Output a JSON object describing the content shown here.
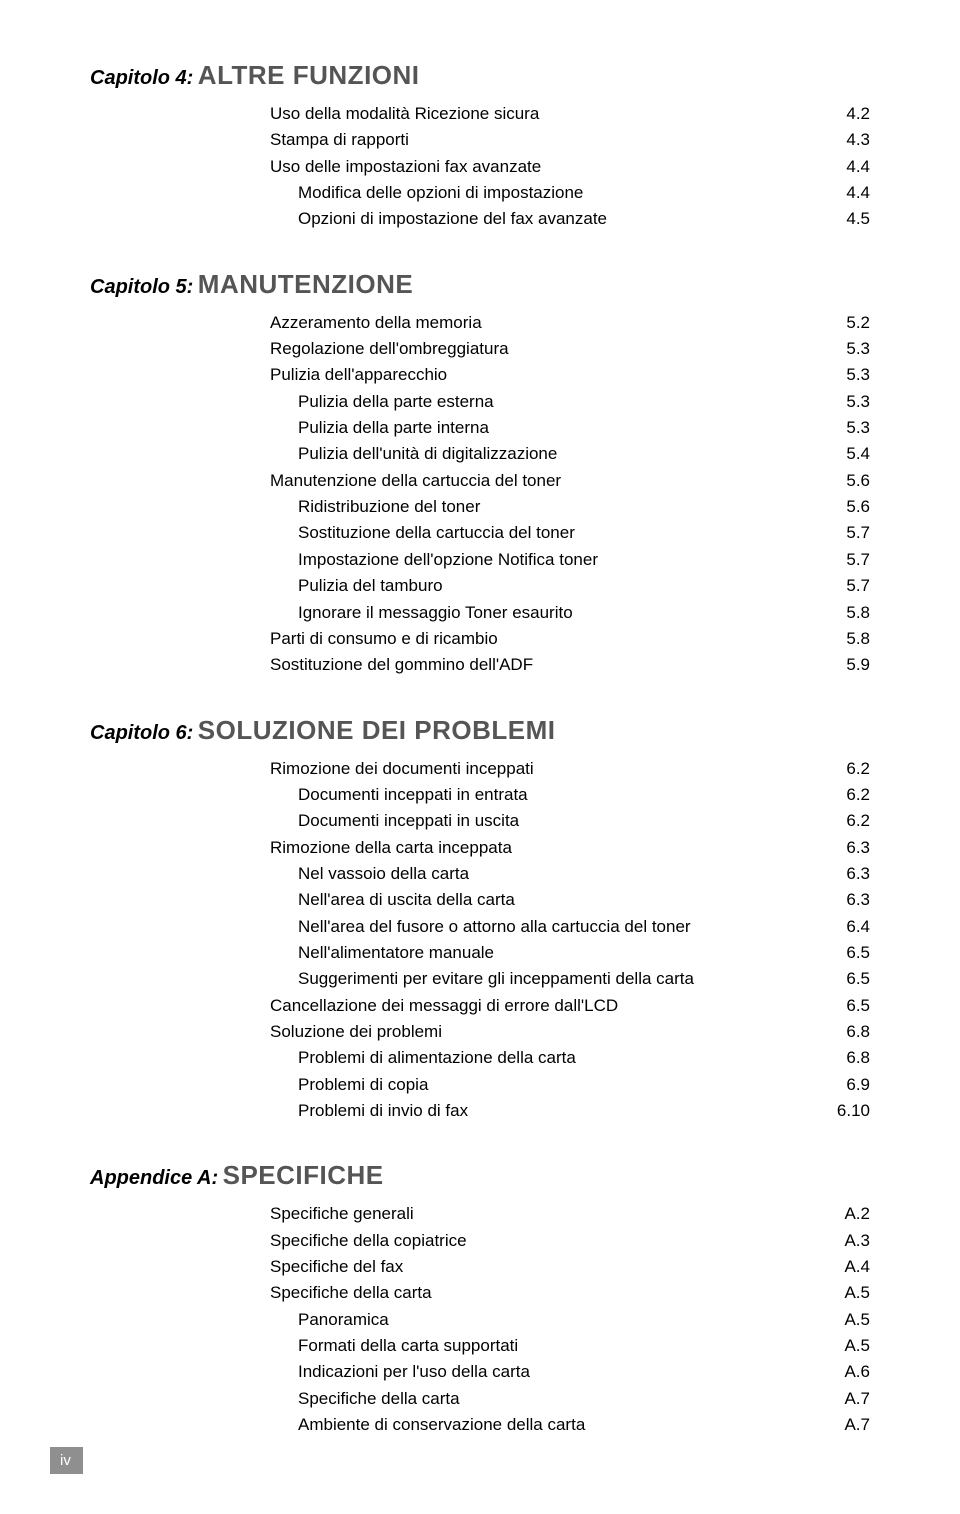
{
  "colors": {
    "chapter_title": "#555555",
    "text": "#000000",
    "badge_bg": "#8f8f8f",
    "badge_text": "#ffffff",
    "page_bg": "#ffffff"
  },
  "typography": {
    "chapter_label_size_pt": 15,
    "chapter_title_size_pt": 20,
    "toc_line_size_pt": 12,
    "font_family": "Verdana"
  },
  "page_number": "iv",
  "chapters": [
    {
      "label": "Capitolo 4:",
      "title": "ALTRE FUNZIONI",
      "toc": [
        {
          "indent": 0,
          "text": "Uso della modalità Ricezione sicura",
          "page": "4.2"
        },
        {
          "indent": 0,
          "text": "Stampa di rapporti",
          "page": "4.3"
        },
        {
          "indent": 0,
          "text": "Uso delle impostazioni fax avanzate",
          "page": "4.4"
        },
        {
          "indent": 1,
          "text": "Modifica delle opzioni di impostazione",
          "page": "4.4"
        },
        {
          "indent": 1,
          "text": "Opzioni di impostazione del fax avanzate",
          "page": "4.5"
        }
      ]
    },
    {
      "label": "Capitolo 5:",
      "title": "MANUTENZIONE",
      "toc": [
        {
          "indent": 0,
          "text": "Azzeramento della memoria",
          "page": "5.2"
        },
        {
          "indent": 0,
          "text": "Regolazione dell'ombreggiatura",
          "page": "5.3"
        },
        {
          "indent": 0,
          "text": "Pulizia dell'apparecchio",
          "page": "5.3"
        },
        {
          "indent": 1,
          "text": "Pulizia della parte esterna",
          "page": "5.3"
        },
        {
          "indent": 1,
          "text": "Pulizia della parte interna",
          "page": "5.3"
        },
        {
          "indent": 1,
          "text": "Pulizia dell'unità di digitalizzazione",
          "page": "5.4"
        },
        {
          "indent": 0,
          "text": "Manutenzione della cartuccia del toner",
          "page": "5.6"
        },
        {
          "indent": 1,
          "text": "Ridistribuzione del toner",
          "page": "5.6"
        },
        {
          "indent": 1,
          "text": "Sostituzione della cartuccia del toner",
          "page": "5.7"
        },
        {
          "indent": 1,
          "text": "Impostazione dell'opzione Notifica toner",
          "page": "5.7"
        },
        {
          "indent": 1,
          "text": "Pulizia del tamburo",
          "page": "5.7"
        },
        {
          "indent": 1,
          "text": "Ignorare il messaggio Toner esaurito",
          "page": "5.8"
        },
        {
          "indent": 0,
          "text": "Parti di consumo e di ricambio",
          "page": "5.8"
        },
        {
          "indent": 0,
          "text": "Sostituzione del gommino dell'ADF",
          "page": "5.9"
        }
      ]
    },
    {
      "label": "Capitolo 6:",
      "title": "SOLUZIONE DEI PROBLEMI",
      "toc": [
        {
          "indent": 0,
          "text": "Rimozione dei documenti inceppati",
          "page": "6.2"
        },
        {
          "indent": 1,
          "text": "Documenti inceppati in entrata",
          "page": "6.2"
        },
        {
          "indent": 1,
          "text": "Documenti inceppati in uscita",
          "page": "6.2"
        },
        {
          "indent": 0,
          "text": " Rimozione della carta inceppata",
          "page": "6.3"
        },
        {
          "indent": 1,
          "text": "Nel vassoio della carta",
          "page": "6.3"
        },
        {
          "indent": 1,
          "text": "Nell'area di uscita della carta",
          "page": "6.3"
        },
        {
          "indent": 1,
          "text": "Nell'area del fusore o attorno alla cartuccia del toner",
          "page": "6.4"
        },
        {
          "indent": 1,
          "text": "Nell'alimentatore manuale",
          "page": "6.5"
        },
        {
          "indent": 1,
          "text": "Suggerimenti per evitare gli inceppamenti della carta",
          "page": "6.5"
        },
        {
          "indent": 0,
          "text": "Cancellazione dei messaggi di errore dall'LCD",
          "page": "6.5"
        },
        {
          "indent": 0,
          "text": "Soluzione dei problemi",
          "page": "6.8"
        },
        {
          "indent": 1,
          "text": "Problemi di alimentazione della carta",
          "page": "6.8"
        },
        {
          "indent": 1,
          "text": "Problemi di copia",
          "page": "6.9"
        },
        {
          "indent": 1,
          "text": "Problemi di invio di fax",
          "page": "6.10"
        }
      ]
    },
    {
      "label": "Appendice A:",
      "title": "SPECIFICHE",
      "toc": [
        {
          "indent": 0,
          "text": "Specifiche generali",
          "page": "A.2"
        },
        {
          "indent": 0,
          "text": "Specifiche della copiatrice",
          "page": "A.3"
        },
        {
          "indent": 0,
          "text": "Specifiche del fax",
          "page": "A.4"
        },
        {
          "indent": 0,
          "text": "Specifiche della carta",
          "page": "A.5"
        },
        {
          "indent": 1,
          "text": "Panoramica",
          "page": "A.5"
        },
        {
          "indent": 1,
          "text": "Formati della carta supportati",
          "page": "A.5"
        },
        {
          "indent": 1,
          "text": "Indicazioni per l'uso della carta",
          "page": "A.6"
        },
        {
          "indent": 1,
          "text": "Specifiche della carta",
          "page": "A.7"
        },
        {
          "indent": 1,
          "text": "Ambiente di conservazione della carta",
          "page": "A.7"
        }
      ]
    }
  ]
}
